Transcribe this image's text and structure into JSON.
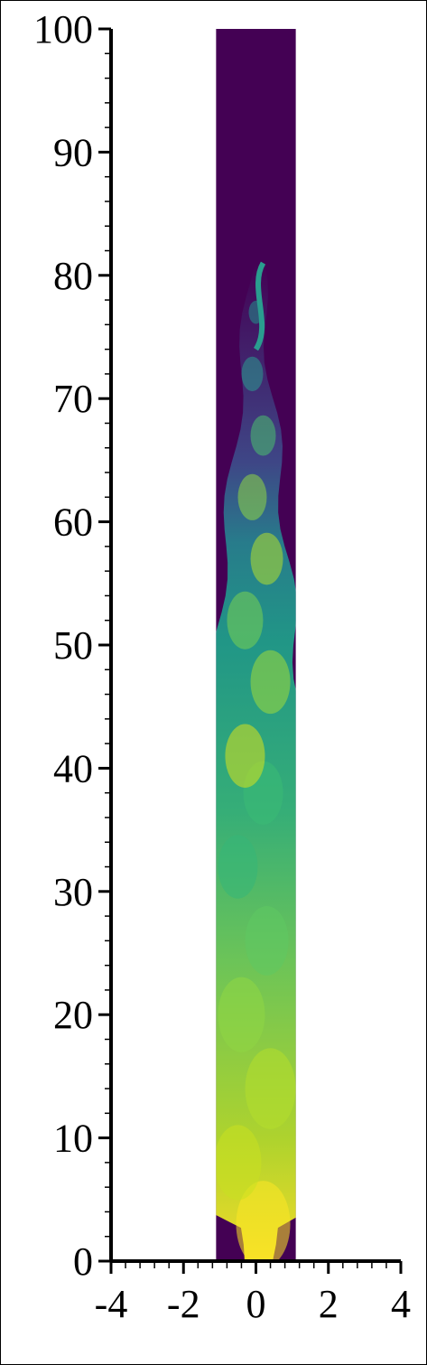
{
  "chart_data": {
    "type": "heatmap",
    "title": "",
    "xlabel": "",
    "ylabel": "",
    "xlim": [
      -4,
      4
    ],
    "ylim": [
      0,
      100
    ],
    "x_ticks": [
      -4,
      -2,
      0,
      2,
      4
    ],
    "y_ticks": [
      0,
      10,
      20,
      30,
      40,
      50,
      60,
      70,
      80,
      90,
      100
    ],
    "x_tick_labels": [
      "-4",
      "-2",
      "0",
      "2",
      "4"
    ],
    "y_tick_labels": [
      "0",
      "10",
      "20",
      "30",
      "40",
      "50",
      "60",
      "70",
      "80",
      "90",
      "100"
    ],
    "domain_x": [
      -1.1,
      1.1
    ],
    "domain_y": [
      0,
      100
    ],
    "plume_top_y": 81,
    "colormap": "viridis",
    "background_color": "#440154",
    "grid": false,
    "legend": false
  }
}
